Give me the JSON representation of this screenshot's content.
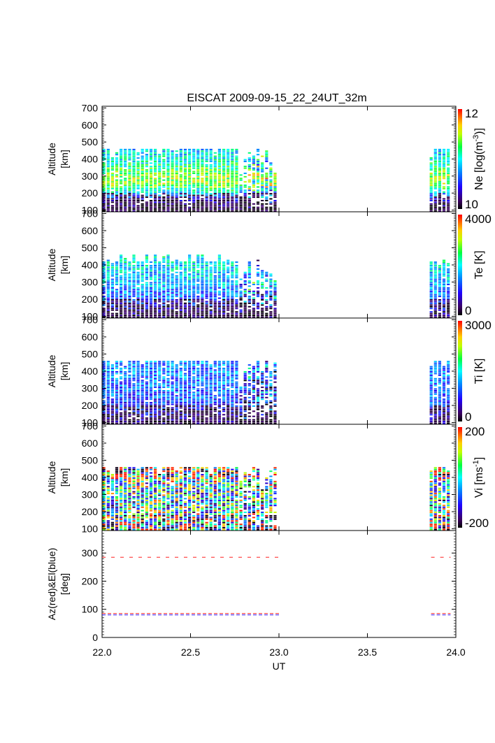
{
  "chart_data": {
    "type": "heatmap",
    "title": "EISCAT 2009-09-15_22_24UT_32m",
    "xlabel": "UT",
    "xlim": [
      22.0,
      24.0
    ],
    "xticks": [
      "22.0",
      "22.5",
      "23.0",
      "23.5",
      "24.0"
    ],
    "xtick_values": [
      22.0,
      22.5,
      23.0,
      23.5,
      24.0
    ],
    "time_columns": {
      "block1": {
        "start": 22.01,
        "step": 0.0242,
        "count": 41
      },
      "block2": {
        "start": 23.86,
        "step": 0.0242,
        "count": 5
      }
    },
    "panels": [
      {
        "id": "ne",
        "ylabel": "Altitude",
        "ylabel2": "[km]",
        "ylim": [
          90,
          710
        ],
        "yticks": [
          100,
          200,
          300,
          400,
          500,
          600,
          700
        ],
        "colorbar": {
          "label": "Ne [log(m",
          "label_sup": "-3",
          "label_end": ")]",
          "min": 10,
          "max": 12,
          "min_label": "10",
          "max_label": "12",
          "palette": "rainbow_black"
        },
        "top_altitudes_block1": [
          460,
          460,
          410,
          440,
          460,
          460,
          460,
          460,
          460,
          460,
          460,
          460,
          460,
          430,
          460,
          460,
          460,
          460,
          460,
          460,
          460,
          460,
          460,
          460,
          460,
          460,
          440,
          460,
          460,
          460,
          460,
          460,
          320,
          400,
          440,
          430,
          460,
          420,
          460,
          400,
          320
        ],
        "top_altitudes_block2": [
          410,
          460,
          460,
          460,
          460
        ],
        "profile": {
          "altitude_km": [
            100,
            150,
            200,
            250,
            300,
            350,
            400,
            450
          ],
          "value": [
            10.0,
            10.2,
            10.9,
            11.4,
            11.4,
            11.2,
            11.0,
            10.9
          ]
        }
      },
      {
        "id": "te",
        "ylabel": "Altitude",
        "ylabel2": "[km]",
        "ylim": [
          90,
          710
        ],
        "yticks": [
          100,
          200,
          300,
          400,
          500,
          600,
          700
        ],
        "colorbar": {
          "label": "Te [K]",
          "label_sup": "",
          "label_end": "",
          "min": 0,
          "max": 4000,
          "min_label": "0",
          "max_label": "4000",
          "palette": "rainbow_black"
        },
        "top_altitudes_block1": [
          420,
          430,
          410,
          420,
          460,
          440,
          420,
          460,
          420,
          420,
          460,
          420,
          460,
          420,
          460,
          460,
          420,
          430,
          420,
          420,
          460,
          420,
          460,
          460,
          420,
          420,
          420,
          460,
          420,
          430,
          420,
          420,
          330,
          360,
          420,
          300,
          430,
          370,
          360,
          350,
          310
        ],
        "top_altitudes_block2": [
          420,
          420,
          400,
          430,
          410
        ],
        "profile": {
          "altitude_km": [
            100,
            150,
            200,
            250,
            300,
            350,
            400,
            450
          ],
          "value": [
            300,
            700,
            1200,
            1500,
            1700,
            1800,
            1900,
            2000
          ]
        }
      },
      {
        "id": "ti",
        "ylabel": "Altitude",
        "ylabel2": "[km]",
        "ylim": [
          90,
          710
        ],
        "yticks": [
          100,
          200,
          300,
          400,
          500,
          600,
          700
        ],
        "colorbar": {
          "label": "Ti [K]",
          "label_sup": "",
          "label_end": "",
          "min": 0,
          "max": 3000,
          "min_label": "0",
          "max_label": "3000",
          "palette": "rainbow_black"
        },
        "top_altitudes_block1": [
          460,
          460,
          440,
          460,
          460,
          440,
          460,
          460,
          460,
          440,
          460,
          460,
          460,
          460,
          460,
          460,
          460,
          440,
          460,
          460,
          460,
          460,
          460,
          460,
          460,
          440,
          460,
          460,
          460,
          460,
          460,
          460,
          330,
          400,
          440,
          430,
          460,
          400,
          460,
          400,
          450
        ],
        "top_altitudes_block2": [
          430,
          460,
          460,
          430,
          460
        ],
        "profile": {
          "altitude_km": [
            100,
            150,
            200,
            250,
            300,
            350,
            400,
            450
          ],
          "value": [
            200,
            500,
            800,
            950,
            1000,
            1050,
            1100,
            1100
          ]
        }
      },
      {
        "id": "vi",
        "ylabel": "Altitude",
        "ylabel2": "[km]",
        "ylim": [
          90,
          710
        ],
        "yticks": [
          100,
          200,
          300,
          400,
          500,
          600,
          700
        ],
        "colorbar": {
          "label": "Vi [ms",
          "label_sup": "-1",
          "label_end": "]",
          "min": -200,
          "max": 200,
          "min_label": "-200",
          "max_label": "200",
          "palette": "rainbow_black"
        },
        "top_altitudes_block1": [
          460,
          440,
          420,
          460,
          460,
          460,
          460,
          460,
          460,
          460,
          460,
          460,
          460,
          420,
          460,
          460,
          460,
          440,
          460,
          460,
          460,
          460,
          460,
          460,
          460,
          420,
          460,
          460,
          460,
          460,
          460,
          460,
          380,
          430,
          420,
          460,
          460,
          330,
          420,
          460,
          460
        ],
        "top_altitudes_block2": [
          440,
          460,
          460,
          460,
          440
        ],
        "profile": {
          "altitude_km": [
            100,
            150,
            200,
            250,
            300,
            350,
            400,
            450
          ],
          "value": [
            0,
            20,
            10,
            -10,
            0,
            20,
            40,
            60
          ]
        }
      }
    ],
    "antenna_panel": {
      "ylabel": "Az(red)&El(blue)",
      "ylabel2": "[deg]",
      "ylim": [
        0,
        380
      ],
      "yticks": [
        0,
        100,
        200,
        300
      ],
      "series": [
        {
          "name": "Az (upper)",
          "color": "#ff2020",
          "value": 285,
          "segments": [
            [
              22.0,
              23.0
            ],
            [
              23.86,
              23.97
            ]
          ],
          "style": "dashed-long"
        },
        {
          "name": "Az (lower)",
          "color": "#ff2020",
          "value": 85,
          "segments": [
            [
              22.0,
              23.0
            ],
            [
              23.86,
              23.97
            ]
          ],
          "style": "dashed-short"
        },
        {
          "name": "El",
          "color": "#3020ff",
          "value": 80,
          "segments": [
            [
              22.0,
              23.0
            ],
            [
              23.86,
              23.97
            ]
          ],
          "style": "dashed-short"
        }
      ]
    }
  }
}
